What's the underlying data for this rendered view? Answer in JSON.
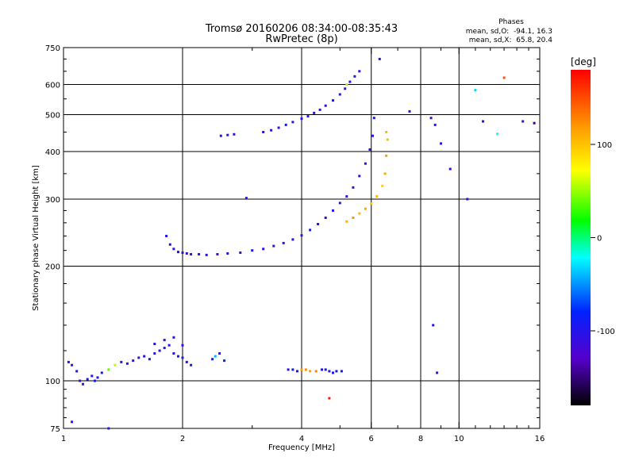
{
  "chart_data": {
    "type": "scatter",
    "title": "Tromsø 20160206 08:34:00-08:35:43",
    "subtitle": "RwPretec (8p)",
    "xlabel": "Frequency [MHz]",
    "ylabel": "Stationary phase Virtual Height [km]",
    "x_scale": "log",
    "y_scale": "log",
    "xlim": [
      1,
      16
    ],
    "ylim": [
      75,
      750
    ],
    "x_ticks": [
      1,
      2,
      4,
      6,
      8,
      10,
      16
    ],
    "y_ticks": [
      75,
      100,
      200,
      300,
      400,
      500,
      600,
      750
    ],
    "x_grid": [
      2,
      4,
      6,
      8,
      10
    ],
    "y_grid": [
      100,
      200,
      300,
      400,
      500,
      600
    ],
    "grid": true,
    "phase_info": {
      "heading": "Phases",
      "line_o": "mean, sd,O:  -94.1, 16.3",
      "line_x": "mean, sd,X:  65.8, 20.4"
    },
    "colorbar": {
      "label": "[deg]",
      "range": [
        -180,
        180
      ],
      "ticks": [
        100,
        0,
        -100
      ]
    },
    "series": [
      {
        "x": [
          1.03,
          1.05,
          1.08,
          1.1,
          1.12,
          1.15,
          1.18,
          1.2,
          1.22,
          1.25,
          1.3,
          1.35,
          1.4,
          1.45,
          1.5,
          1.55,
          1.6,
          1.65,
          1.7,
          1.75,
          1.8,
          1.85,
          1.9,
          1.95,
          2.0,
          2.05,
          2.1,
          1.7,
          1.8,
          1.9,
          2.0
        ],
        "y": [
          112,
          110,
          106,
          100,
          98,
          101,
          103,
          100,
          102,
          105,
          107,
          110,
          112,
          111,
          113,
          115,
          116,
          114,
          118,
          120,
          122,
          124,
          118,
          116,
          115,
          112,
          110,
          125,
          128,
          130,
          124
        ],
        "phase": [
          -100,
          -105,
          -98,
          -110,
          -92,
          -104,
          -100,
          -95,
          -108,
          -102,
          40,
          60,
          -100,
          -96,
          -104,
          -110,
          -100,
          -95,
          -102,
          -108,
          -100,
          -96,
          -104,
          -100,
          -98,
          -110,
          -95,
          -102,
          -106,
          -100,
          -104
        ]
      },
      {
        "x": [
          2.38,
          2.42,
          2.48,
          2.55
        ],
        "y": [
          114,
          116,
          118,
          113
        ],
        "phase": [
          -95,
          -40,
          -100,
          -90
        ]
      },
      {
        "x": [
          3.7,
          3.8,
          3.9,
          4.0,
          4.1,
          4.2,
          4.35,
          4.5,
          4.6,
          4.7,
          4.8,
          4.9,
          5.05
        ],
        "y": [
          107,
          107,
          106,
          107,
          107,
          106,
          106,
          107,
          107,
          106,
          105,
          106,
          106
        ],
        "phase": [
          -100,
          -95,
          -100,
          120,
          125,
          115,
          130,
          -98,
          -102,
          -96,
          -100,
          -94,
          -90
        ]
      },
      {
        "x": [
          1.82,
          1.86,
          1.9,
          1.95,
          2.0,
          2.05,
          2.1,
          2.2,
          2.3,
          2.45,
          2.6,
          2.8,
          3.0,
          3.2,
          3.4,
          3.6,
          3.8,
          4.0,
          4.2,
          4.4,
          4.6,
          4.8,
          5.0,
          5.2,
          5.4,
          5.6,
          5.8,
          5.95,
          6.05,
          6.1
        ],
        "y": [
          240,
          228,
          222,
          218,
          217,
          216,
          215,
          215,
          214,
          215,
          216,
          217,
          220,
          222,
          226,
          230,
          235,
          241,
          249,
          258,
          268,
          280,
          293,
          305,
          322,
          345,
          372,
          405,
          440,
          490
        ],
        "phase": [
          -100,
          -105,
          -98,
          -110,
          -102,
          -120,
          -95,
          -104,
          -100,
          -130,
          -96,
          -108,
          -100,
          -112,
          -98,
          -104,
          -100,
          -106,
          -95,
          -102,
          -108,
          -100,
          -96,
          -104,
          -100,
          -110,
          -98,
          -102,
          -100,
          -96
        ]
      },
      {
        "x": [
          5.2,
          5.4,
          5.6,
          5.8,
          6.0,
          6.2,
          6.4,
          6.5,
          6.55,
          6.6,
          6.55
        ],
        "y": [
          262,
          268,
          275,
          283,
          292,
          305,
          325,
          350,
          390,
          430,
          450
        ],
        "phase": [
          110,
          120,
          105,
          115,
          100,
          108,
          95,
          112,
          118,
          102,
          106
        ]
      },
      {
        "x": [
          2.5,
          2.6,
          2.7,
          3.2,
          3.35,
          3.5,
          3.65,
          3.8,
          4.0,
          4.15,
          4.3,
          4.45,
          4.6,
          4.8,
          5.0,
          5.15,
          5.3,
          5.45,
          5.6
        ],
        "y": [
          440,
          442,
          444,
          450,
          455,
          462,
          470,
          478,
          488,
          495,
          505,
          515,
          528,
          545,
          565,
          585,
          610,
          630,
          650
        ],
        "phase": [
          -100,
          -104,
          -98,
          -102,
          -106,
          -100,
          -95,
          -108,
          -100,
          -96,
          -104,
          -100,
          -110,
          -98,
          -102,
          -100,
          -106,
          -95,
          -100
        ]
      },
      {
        "x": [
          2.9,
          5.2,
          6.3,
          7.5,
          8.5,
          8.7,
          9.0,
          9.5,
          10.5,
          11.0,
          11.5,
          12.5,
          13.0,
          14.5,
          15.5,
          8.6,
          8.8,
          1.05,
          1.3,
          4.7
        ],
        "y": [
          302,
          600,
          700,
          510,
          490,
          470,
          420,
          360,
          300,
          580,
          480,
          445,
          625,
          480,
          475,
          140,
          105,
          78,
          75,
          90
        ],
        "phase": [
          -100,
          60,
          -100,
          -110,
          -120,
          -100,
          -95,
          -100,
          -104,
          -30,
          -100,
          -20,
          150,
          -98,
          -150,
          -100,
          -110,
          -100,
          -96,
          170
        ]
      }
    ]
  }
}
